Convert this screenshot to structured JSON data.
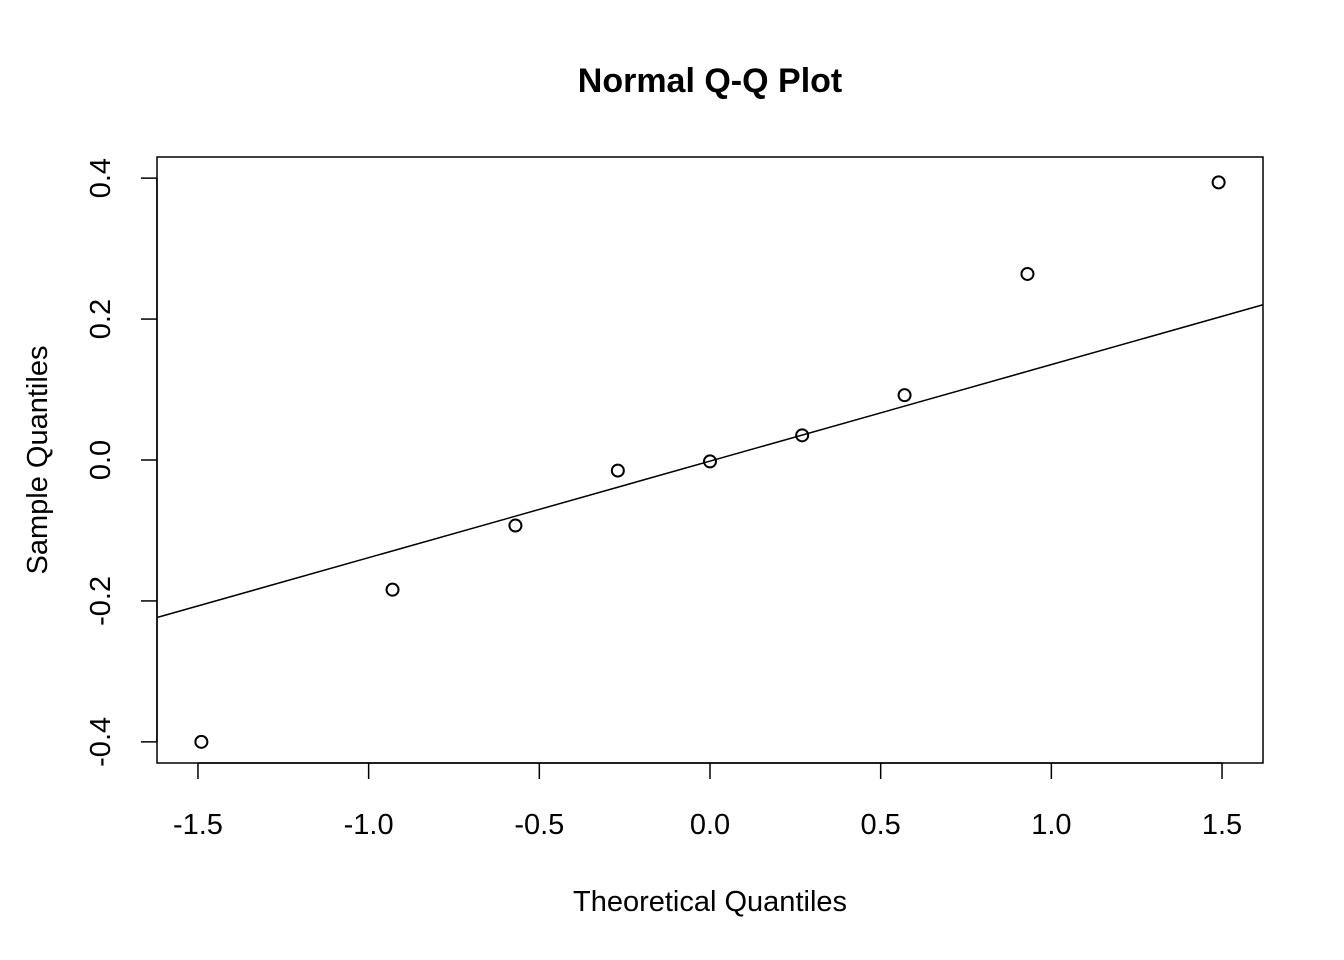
{
  "chart_data": {
    "type": "scatter",
    "title": "Normal Q-Q Plot",
    "xlabel": "Theoretical Quantiles",
    "ylabel": "Sample Quantiles",
    "xlim": [
      -1.62,
      1.62
    ],
    "ylim": [
      -0.43,
      0.43
    ],
    "xticks": [
      -1.5,
      -1.0,
      -0.5,
      0.0,
      0.5,
      1.0,
      1.5
    ],
    "xtick_labels": [
      "-1.5",
      "-1.0",
      "-0.5",
      "0.0",
      "0.5",
      "1.0",
      "1.5"
    ],
    "yticks": [
      -0.4,
      -0.2,
      0.0,
      0.2,
      0.4
    ],
    "ytick_labels": [
      "-0.4",
      "-0.2",
      "0.0",
      "0.2",
      "0.4"
    ],
    "grid": false,
    "points": {
      "x": [
        -1.49,
        -0.93,
        -0.57,
        -0.27,
        0.0,
        0.27,
        0.57,
        0.93,
        1.49
      ],
      "y": [
        -0.4,
        -0.184,
        -0.093,
        -0.015,
        -0.002,
        0.035,
        0.092,
        0.264,
        0.394
      ]
    },
    "reference_line": {
      "slope": 0.137,
      "intercept": -0.0016
    },
    "colors": {
      "marks": "#000000",
      "background": "#ffffff"
    }
  }
}
